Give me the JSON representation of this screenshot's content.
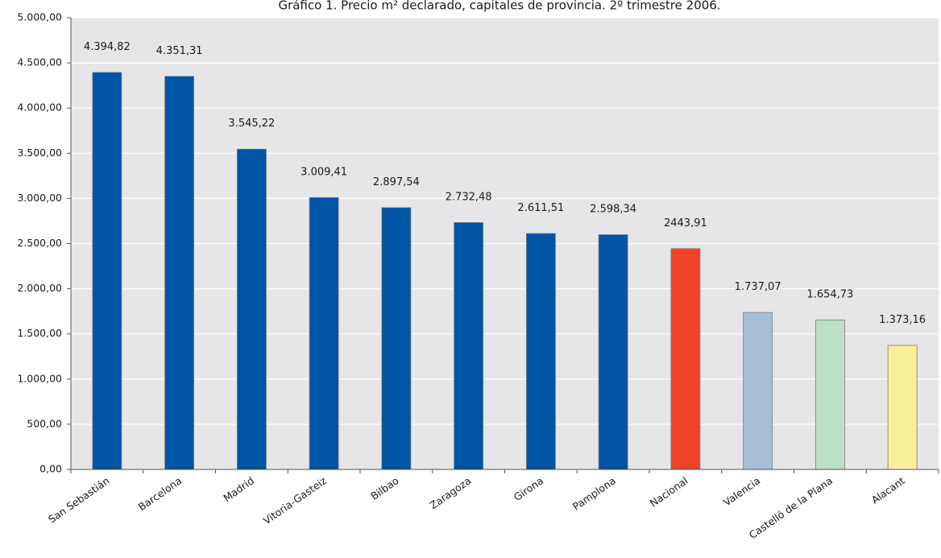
{
  "chart_data": {
    "type": "bar",
    "title": "Gráfico 1. Precio m² declarado, capitales de provincia. 2º trimestre 2006.",
    "categories": [
      "San Sebastián",
      "Barcelona",
      "Madrid",
      "Vitoria-Gasteiz",
      "Bilbao",
      "Zaragoza",
      "Girona",
      "Pamplona",
      "Nacional",
      "Valencia",
      "Castelló de la Plana",
      "Alacant"
    ],
    "values": [
      4394.82,
      4351.31,
      3545.22,
      3009.41,
      2897.54,
      2732.48,
      2611.51,
      2598.34,
      2443.91,
      1737.07,
      1654.73,
      1373.16
    ],
    "value_labels": [
      "4.394,82",
      "4.351,31",
      "3.545,22",
      "3.009,41",
      "2.897,54",
      "2.732,48",
      "2.611,51",
      "2.598,34",
      "2443,91",
      "1.737,07",
      "1.654,73",
      "1.373,16"
    ],
    "bar_colors": [
      "#0054a6",
      "#0054a6",
      "#0054a6",
      "#0054a6",
      "#0054a6",
      "#0054a6",
      "#0054a6",
      "#0054a6",
      "#ee4326",
      "#a8bfd8",
      "#bcdfc8",
      "#f8ef9a"
    ],
    "ylim": [
      0,
      5000
    ],
    "y_ticks": [
      0,
      500,
      1000,
      1500,
      2000,
      2500,
      3000,
      3500,
      4000,
      4500,
      5000
    ],
    "y_tick_labels": [
      "0,00",
      "500,00",
      "1.000,00",
      "1.500,00",
      "2.000,00",
      "2.500,00",
      "3.000,00",
      "3.500,00",
      "4.000,00",
      "4.500,00",
      "5.000,00"
    ],
    "xlabel": "",
    "ylabel": "",
    "grid": true,
    "legend": "none",
    "plot_background": "#e6e6e8",
    "grid_color": "#ffffff"
  }
}
